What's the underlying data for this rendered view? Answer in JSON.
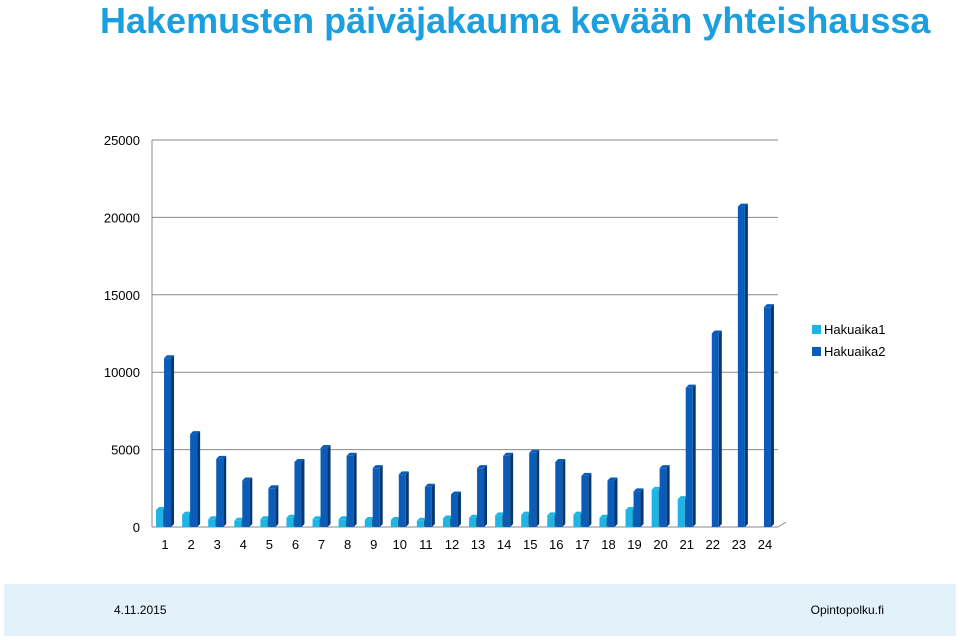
{
  "page": {
    "title": "Hakemusten päiväjakauma kevään yhteishaussa"
  },
  "footer": {
    "date": "4.11.2015",
    "brand": "Opintopolku.fi"
  },
  "chart_data": {
    "type": "bar",
    "categories": [
      "1",
      "2",
      "3",
      "4",
      "5",
      "6",
      "7",
      "8",
      "9",
      "10",
      "11",
      "12",
      "13",
      "14",
      "15",
      "16",
      "17",
      "18",
      "19",
      "20",
      "21",
      "22",
      "23",
      "24"
    ],
    "series": [
      {
        "name": "Hakuaika1",
        "color": "#1eb4e6",
        "values": [
          1100,
          800,
          500,
          400,
          500,
          600,
          500,
          500,
          450,
          450,
          400,
          550,
          600,
          750,
          800,
          750,
          800,
          600,
          1100,
          2400,
          1800,
          null,
          null,
          null
        ]
      },
      {
        "name": "Hakuaika2",
        "color": "#0a5cb8",
        "values": [
          10900,
          6000,
          4400,
          3000,
          2500,
          4200,
          5100,
          4600,
          3800,
          3400,
          2600,
          2100,
          3800,
          4600,
          4800,
          4200,
          3300,
          3000,
          2300,
          3800,
          9000,
          12500,
          20700,
          14200
        ]
      }
    ],
    "yticks": [
      "25000",
      "20000",
      "15000",
      "10000",
      "5000",
      "0"
    ],
    "ylim": [
      0,
      25000
    ],
    "grid": true,
    "legend": "right"
  }
}
